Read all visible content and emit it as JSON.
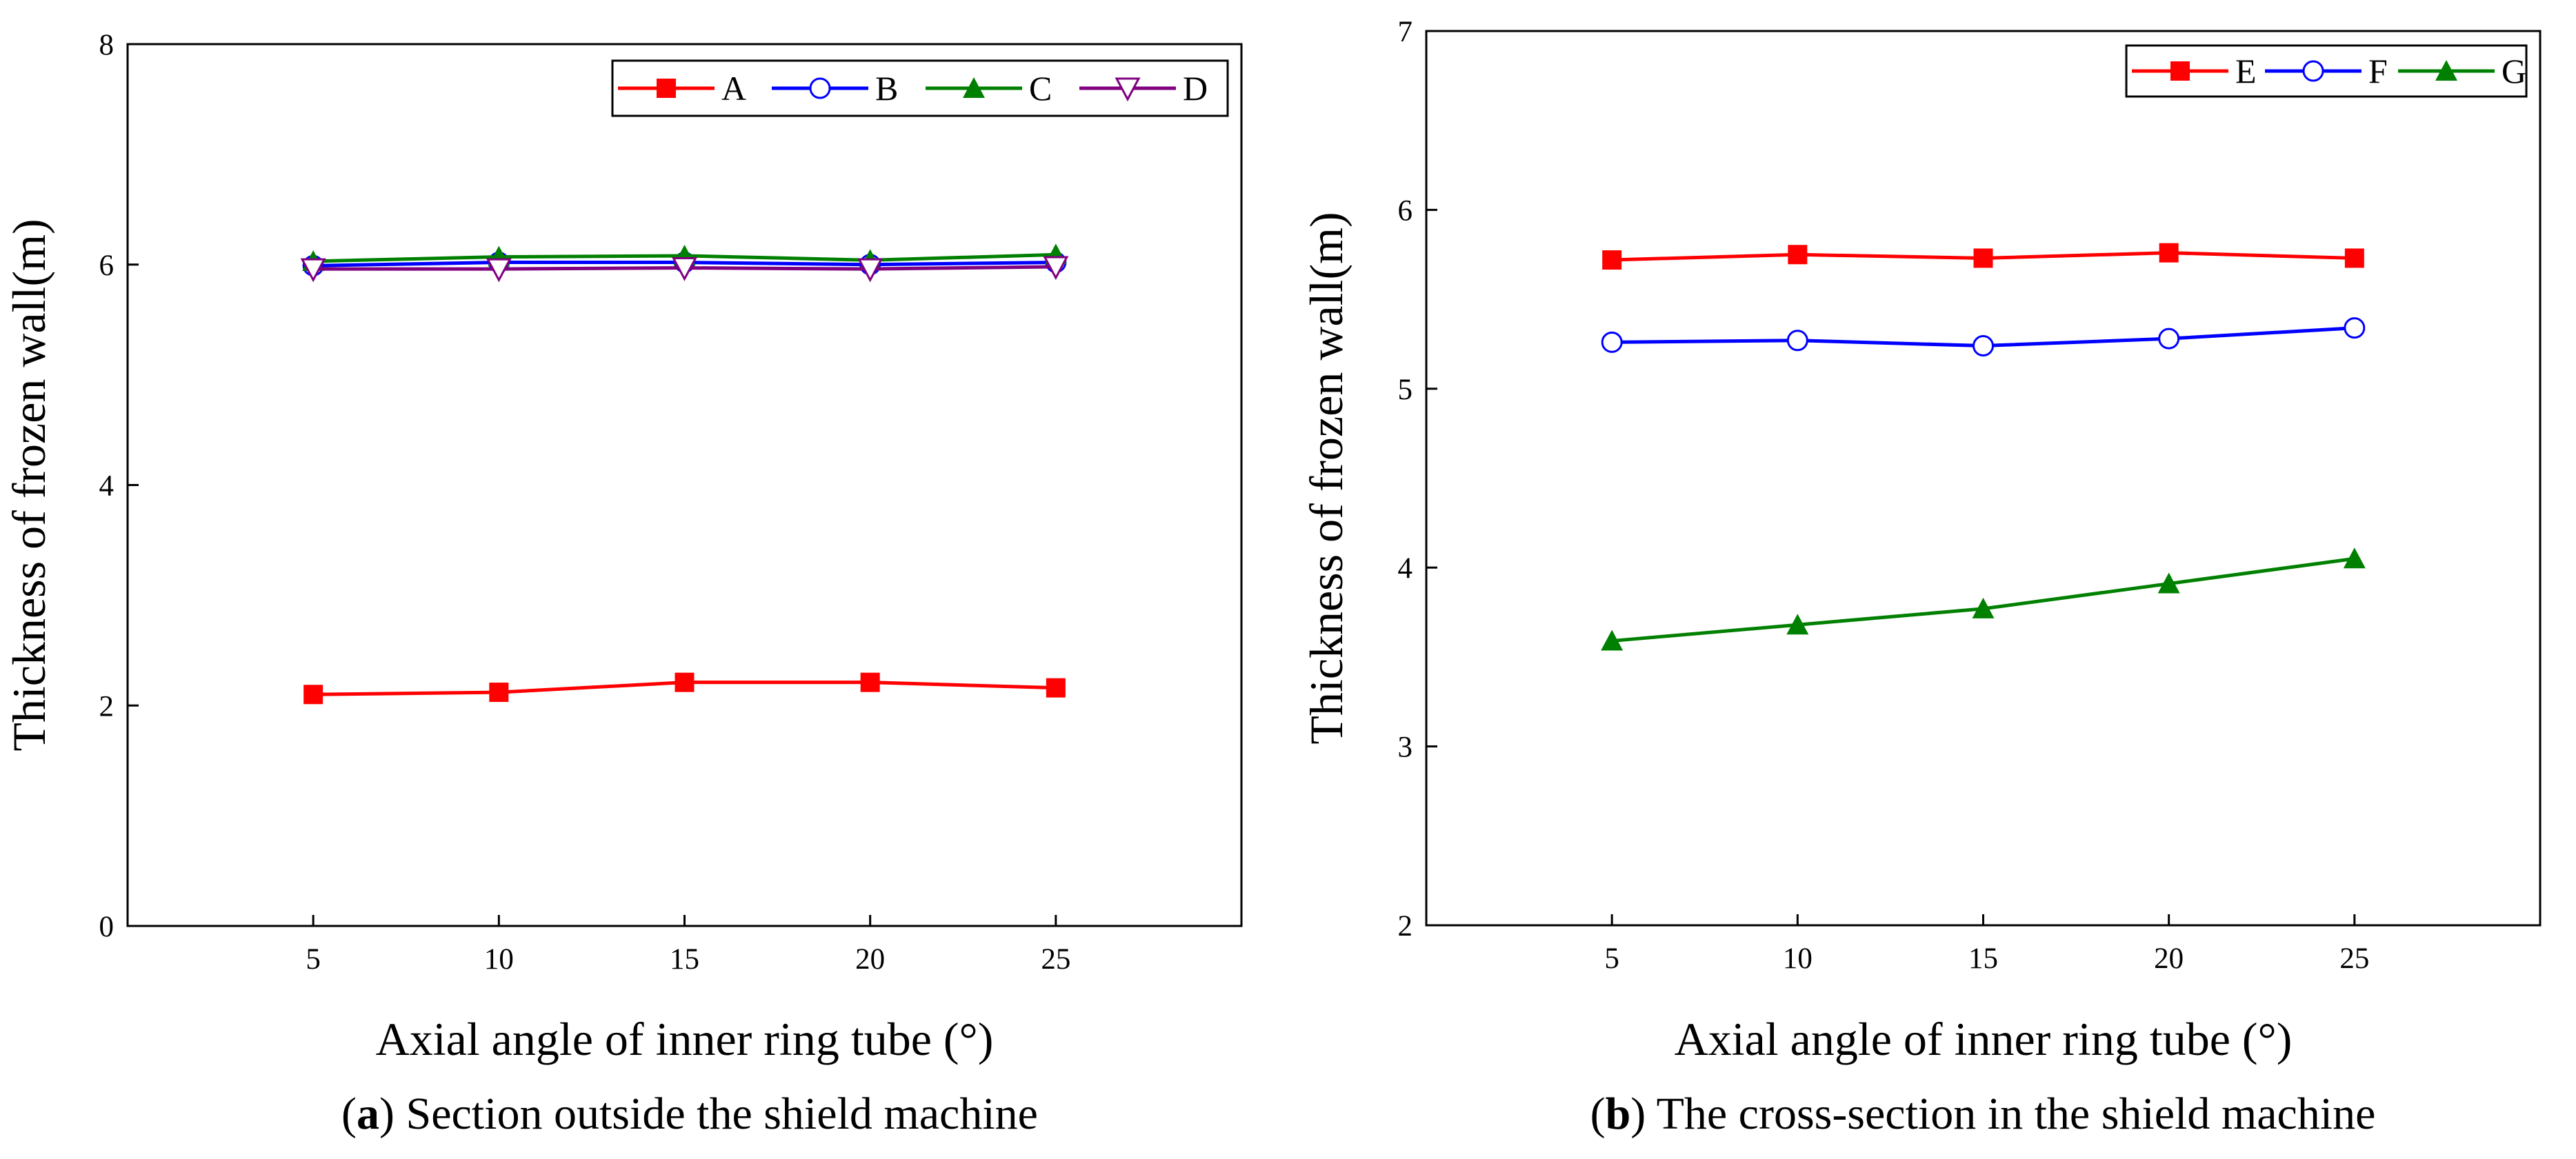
{
  "chart_data": [
    {
      "panel": "a",
      "type": "line",
      "caption_letter": "a",
      "caption_text": " Section outside the shield machine",
      "xlabel": "Axial angle of inner ring tube (°)",
      "ylabel": "Thickness of frozen wall(m)",
      "x": [
        5,
        10,
        15,
        20,
        25
      ],
      "xlim": [
        0,
        30
      ],
      "ylim": [
        0,
        8
      ],
      "yticks": [
        0,
        2,
        4,
        6,
        8
      ],
      "grid": false,
      "legend_position": "top-right",
      "series": [
        {
          "name": "A",
          "color": "#ff0000",
          "marker": "square-filled",
          "values": [
            2.1,
            2.12,
            2.21,
            2.21,
            2.16
          ]
        },
        {
          "name": "B",
          "color": "#0000ff",
          "marker": "circle-open",
          "values": [
            5.99,
            6.02,
            6.02,
            6.0,
            6.02
          ]
        },
        {
          "name": "C",
          "color": "#008000",
          "marker": "triangle-filled",
          "values": [
            6.03,
            6.07,
            6.08,
            6.04,
            6.09
          ]
        },
        {
          "name": "D",
          "color": "#800080",
          "marker": "triangle-down-open",
          "values": [
            5.96,
            5.96,
            5.97,
            5.96,
            5.98
          ]
        }
      ]
    },
    {
      "panel": "b",
      "type": "line",
      "caption_letter": "b",
      "caption_text": " The cross-section in the shield machine",
      "xlabel": "Axial angle of inner ring tube (°)",
      "ylabel": "Thickness of frozen wall(m)",
      "x": [
        5,
        10,
        15,
        20,
        25
      ],
      "xlim": [
        0,
        30
      ],
      "ylim": [
        2,
        7
      ],
      "yticks": [
        2,
        3,
        4,
        5,
        6,
        7
      ],
      "grid": false,
      "legend_position": "top-right",
      "series": [
        {
          "name": "E",
          "color": "#ff0000",
          "marker": "square-filled",
          "values": [
            5.72,
            5.75,
            5.73,
            5.76,
            5.73
          ]
        },
        {
          "name": "F",
          "color": "#0000ff",
          "marker": "circle-open",
          "values": [
            5.26,
            5.27,
            5.24,
            5.28,
            5.34
          ]
        },
        {
          "name": "G",
          "color": "#008000",
          "marker": "triangle-filled",
          "values": [
            3.59,
            3.68,
            3.77,
            3.91,
            4.05
          ]
        }
      ]
    }
  ]
}
